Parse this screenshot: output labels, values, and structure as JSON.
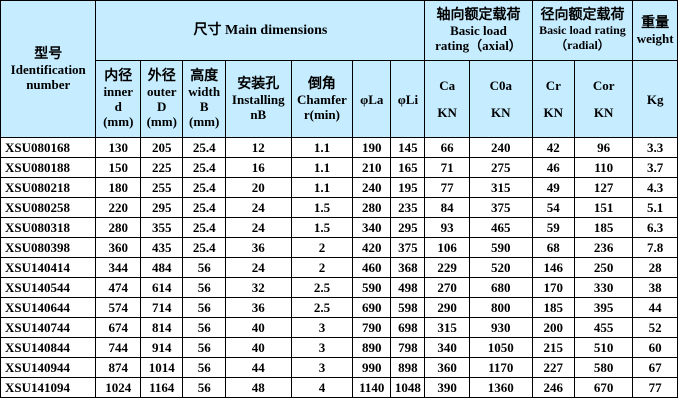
{
  "header": {
    "model": "型号",
    "model_en": "Identification number",
    "dimensions": "尺寸 Main dimensions",
    "axial_zh": "轴向额定载荷",
    "axial_en1": "Basic load",
    "axial_en2": "rating（axial）",
    "radial_zh": "径向额定载荷",
    "radial_en1": "Basic load rating",
    "radial_en2": "（radial）",
    "weight_zh": "重量",
    "weight_en": "weight",
    "inner_zh": "内径",
    "inner_en": "inner",
    "inner_sym": "d",
    "outer_zh": "外径",
    "outer_en": "outer",
    "outer_sym": "D",
    "height_zh": "高度",
    "height_en": "width",
    "height_sym": "B",
    "install_zh": "安装孔",
    "install_en": "Installing",
    "install_sym": "nB",
    "chamfer_zh": "倒角",
    "chamfer_en": "Chamfer",
    "chamfer_sym": "r(min)",
    "mm": "(mm)",
    "la": "φLa",
    "li": "φLi",
    "ca": "Ca",
    "c0a": "C0a",
    "cr": "Cr",
    "cor": "Cor",
    "kn": "KN",
    "kg": "Kg"
  },
  "rows": [
    [
      "XSU080168",
      "130",
      "205",
      "25.4",
      "12",
      "1.1",
      "190",
      "145",
      "66",
      "240",
      "42",
      "96",
      "3.3"
    ],
    [
      "XSU080188",
      "150",
      "225",
      "25.4",
      "16",
      "1.1",
      "210",
      "165",
      "71",
      "275",
      "46",
      "110",
      "3.7"
    ],
    [
      "XSU080218",
      "180",
      "255",
      "25.4",
      "20",
      "1.1",
      "240",
      "195",
      "77",
      "315",
      "49",
      "127",
      "4.3"
    ],
    [
      "XSU080258",
      "220",
      "295",
      "25.4",
      "24",
      "1.5",
      "280",
      "235",
      "84",
      "375",
      "54",
      "151",
      "5.1"
    ],
    [
      "XSU080318",
      "280",
      "355",
      "25.4",
      "24",
      "1.5",
      "340",
      "295",
      "93",
      "465",
      "59",
      "185",
      "6.3"
    ],
    [
      "XSU080398",
      "360",
      "435",
      "25.4",
      "36",
      "2",
      "420",
      "375",
      "106",
      "590",
      "68",
      "236",
      "7.8"
    ],
    [
      "XSU140414",
      "344",
      "484",
      "56",
      "24",
      "2",
      "460",
      "368",
      "229",
      "520",
      "146",
      "250",
      "28"
    ],
    [
      "XSU140544",
      "474",
      "614",
      "56",
      "32",
      "2.5",
      "590",
      "498",
      "270",
      "680",
      "170",
      "330",
      "38"
    ],
    [
      "XSU140644",
      "574",
      "714",
      "56",
      "36",
      "2.5",
      "690",
      "598",
      "290",
      "800",
      "185",
      "395",
      "44"
    ],
    [
      "XSU140744",
      "674",
      "814",
      "56",
      "40",
      "3",
      "790",
      "698",
      "315",
      "930",
      "200",
      "455",
      "52"
    ],
    [
      "XSU140844",
      "744",
      "914",
      "56",
      "40",
      "3",
      "890",
      "798",
      "340",
      "1050",
      "215",
      "510",
      "60"
    ],
    [
      "XSU140944",
      "874",
      "1014",
      "56",
      "44",
      "3",
      "990",
      "898",
      "360",
      "1170",
      "227",
      "580",
      "67"
    ],
    [
      "XSU141094",
      "1024",
      "1164",
      "56",
      "48",
      "4",
      "1140",
      "1048",
      "390",
      "1360",
      "246",
      "670",
      "77"
    ]
  ]
}
